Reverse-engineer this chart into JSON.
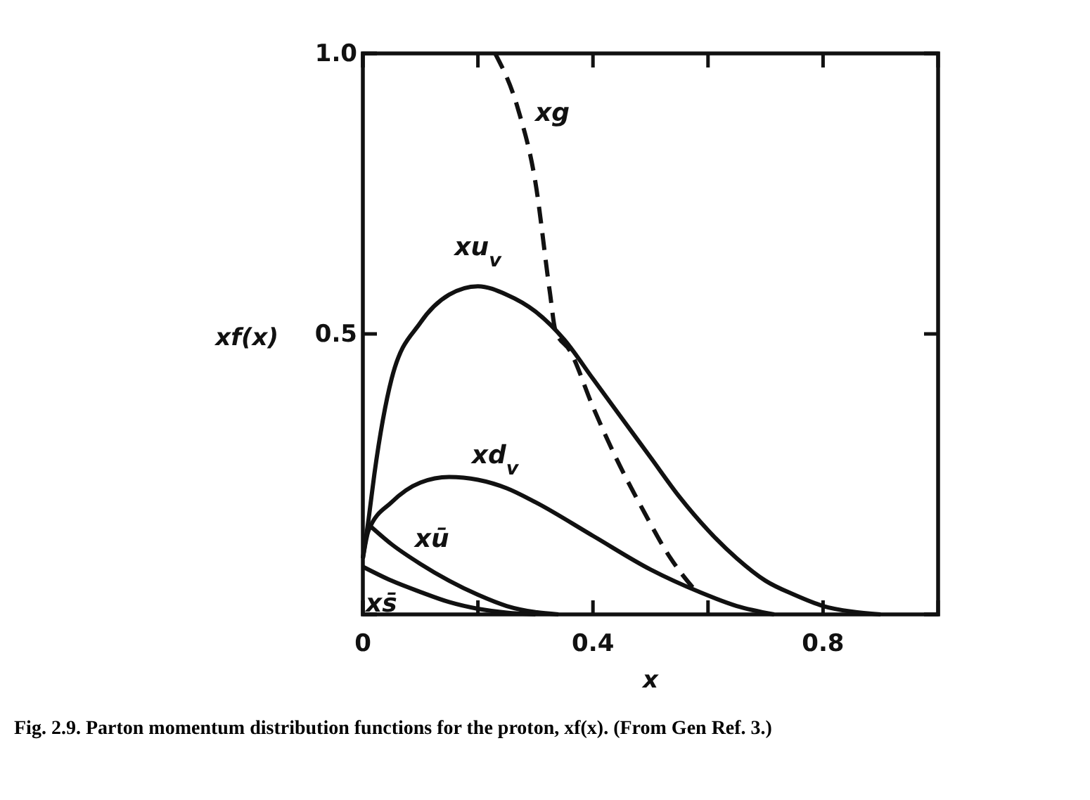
{
  "chart_data": {
    "type": "line",
    "xlabel": "x",
    "ylabel": "xf(x)",
    "xlim": [
      0,
      1.0
    ],
    "ylim": [
      0,
      1.0
    ],
    "xticks": [
      0,
      {
        "value": 0.2,
        "label": null
      },
      0.4,
      {
        "value": 0.6,
        "label": null
      },
      0.8
    ],
    "yticks": [
      {
        "value": 0,
        "label": null
      },
      0.5,
      {
        "value": 1.0,
        "label": "1.0"
      }
    ],
    "grid": false,
    "legend": false,
    "marker": "none",
    "series": [
      {
        "name": "xg",
        "color": "#111111",
        "line_style": "dashed",
        "x": [
          0.23,
          0.27,
          0.3,
          0.325,
          0.335,
          0.36,
          0.4,
          0.435,
          0.485,
          0.535,
          0.58
        ],
        "values": [
          1.0,
          0.9,
          0.77,
          0.575,
          0.505,
          0.47,
          0.37,
          0.29,
          0.19,
          0.1,
          0.04
        ]
      },
      {
        "name": "xu$_{v}$",
        "color": "#111111",
        "line_style": "solid",
        "x": [
          0,
          0.01,
          0.02,
          0.05,
          0.1,
          0.15,
          0.2,
          0.25,
          0.3,
          0.35,
          0.4,
          0.45,
          0.5,
          0.55,
          0.6,
          0.65,
          0.7,
          0.75,
          0.8,
          0.85,
          0.9
        ],
        "values": [
          0.1,
          0.17,
          0.25,
          0.42,
          0.52,
          0.57,
          0.585,
          0.57,
          0.54,
          0.49,
          0.42,
          0.35,
          0.28,
          0.21,
          0.15,
          0.1,
          0.06,
          0.035,
          0.015,
          0.005,
          0
        ]
      },
      {
        "name": "xd$_{v}$",
        "color": "#111111",
        "line_style": "solid",
        "x": [
          0,
          0.01,
          0.05,
          0.1,
          0.15,
          0.2,
          0.25,
          0.3,
          0.4,
          0.5,
          0.585,
          0.65,
          0.715
        ],
        "values": [
          0.1,
          0.15,
          0.2,
          0.235,
          0.245,
          0.24,
          0.225,
          0.2,
          0.14,
          0.08,
          0.04,
          0.015,
          0
        ]
      },
      {
        "name": "xū",
        "color": "#111111",
        "line_style": "solid",
        "x": [
          0.01,
          0.05,
          0.1,
          0.15,
          0.2,
          0.25,
          0.3,
          0.34
        ],
        "values": [
          0.16,
          0.125,
          0.09,
          0.06,
          0.035,
          0.015,
          0.004,
          0
        ]
      },
      {
        "name": "xs̄",
        "color": "#111111",
        "line_style": "solid",
        "x": [
          0,
          0.05,
          0.1,
          0.15,
          0.2,
          0.25,
          0.3
        ],
        "values": [
          0.085,
          0.06,
          0.04,
          0.022,
          0.01,
          0.003,
          0
        ]
      }
    ],
    "annotations": [
      "Fig. 2.9. Parton momentum distribution functions for the proton, xf(x). (From Gen Ref. 3.)"
    ]
  }
}
